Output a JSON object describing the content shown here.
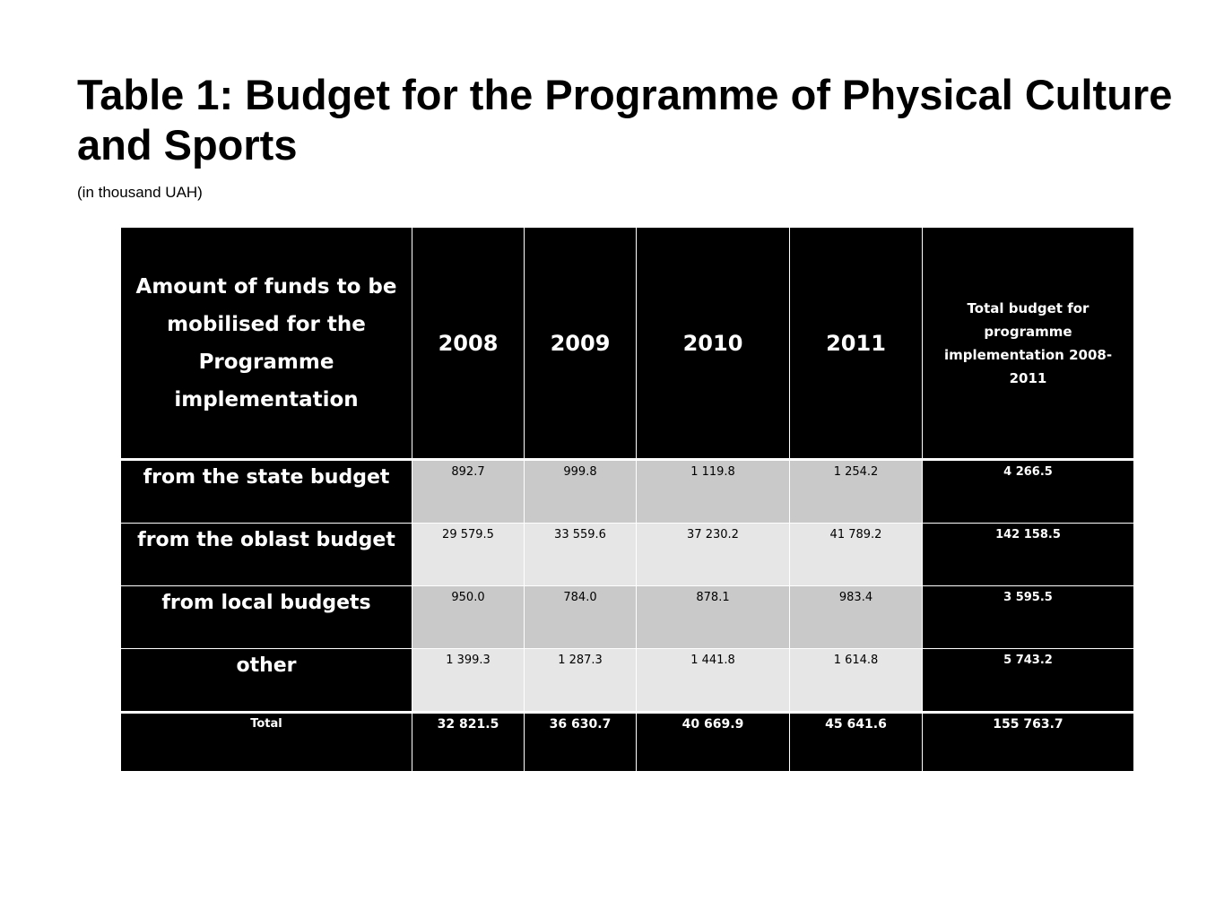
{
  "title": "Table 1: Budget for the Programme of Physical Culture and Sports",
  "subtitle": "(in thousand UAH)",
  "table": {
    "header": {
      "label": "Amount of funds to be mobilised for the Programme implementation",
      "years": [
        "2008",
        "2009",
        "2010",
        "2011"
      ],
      "total": "Total budget for programme implementation 2008-2011"
    },
    "rows": [
      {
        "label": "from the state budget",
        "values": [
          "892.7",
          "999.8",
          "1 119.8",
          "1 254.2"
        ],
        "total": "4 266.5"
      },
      {
        "label": "from the oblast budget",
        "values": [
          "29 579.5",
          "33 559.6",
          "37 230.2",
          "41 789.2"
        ],
        "total": "142 158.5"
      },
      {
        "label": "from local budgets",
        "values": [
          "950.0",
          "784.0",
          "878.1",
          "983.4"
        ],
        "total": "3 595.5"
      },
      {
        "label": "other",
        "values": [
          "1 399.3",
          "1 287.3",
          "1 441.8",
          "1 614.8"
        ],
        "total": "5 743.2"
      }
    ],
    "total_row": {
      "label": "Total",
      "values": [
        "32 821.5",
        "36 630.7",
        "40 669.9",
        "45 641.6"
      ],
      "total": "155 763.7"
    }
  },
  "colors": {
    "header_bg": "#000000",
    "header_text": "#ffffff",
    "cell_shade_dark": "#c9c9c9",
    "cell_shade_light": "#e6e6e6"
  }
}
